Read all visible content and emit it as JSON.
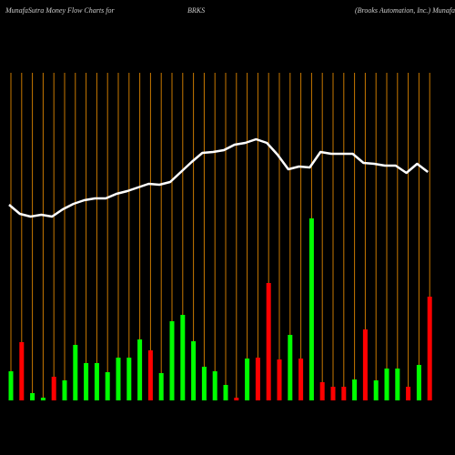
{
  "chart_data": {
    "type": "bar",
    "title": [
      "MunafaSutra  Money Flow  Charts for",
      "BRKS",
      "(Brooks Automation,  Inc.) MunafaSutra.com"
    ],
    "values": [
      32,
      64,
      8,
      3,
      26,
      22,
      61,
      41,
      41,
      31,
      47,
      47,
      67,
      55,
      30,
      87,
      94,
      65,
      37,
      32,
      17,
      3,
      46,
      47,
      129,
      45,
      72,
      46,
      200,
      20,
      15,
      15,
      23,
      78,
      22,
      35,
      35,
      15,
      39,
      114
    ],
    "colors": [
      "#00ff00",
      "#ff0000",
      "#00ff00",
      "#00ff00",
      "#ff0000",
      "#00ff00",
      "#00ff00",
      "#00ff00",
      "#00ff00",
      "#00ff00",
      "#00ff00",
      "#00ff00",
      "#00ff00",
      "#ff0000",
      "#00ff00",
      "#00ff00",
      "#00ff00",
      "#00ff00",
      "#00ff00",
      "#00ff00",
      "#00ff00",
      "#ff0000",
      "#00ff00",
      "#ff0000",
      "#ff0000",
      "#ff0000",
      "#00ff00",
      "#ff0000",
      "#00ff00",
      "#ff0000",
      "#ff0000",
      "#ff0000",
      "#00ff00",
      "#ff0000",
      "#00ff00",
      "#00ff00",
      "#00ff00",
      "#ff0000",
      "#00ff00",
      "#ff0000"
    ],
    "line": {
      "color": "#ffffff",
      "values": [
        215,
        205,
        202,
        204,
        202,
        210,
        216,
        220,
        222,
        222,
        227,
        230,
        234,
        238,
        237,
        240,
        251,
        262,
        272,
        273,
        275,
        281,
        283,
        287,
        283,
        270,
        254,
        257,
        256,
        273,
        271,
        271,
        271,
        261,
        260,
        258,
        258,
        250,
        260,
        251
      ]
    },
    "ylim": [
      0,
      360
    ],
    "grid_color": "#c87800"
  }
}
